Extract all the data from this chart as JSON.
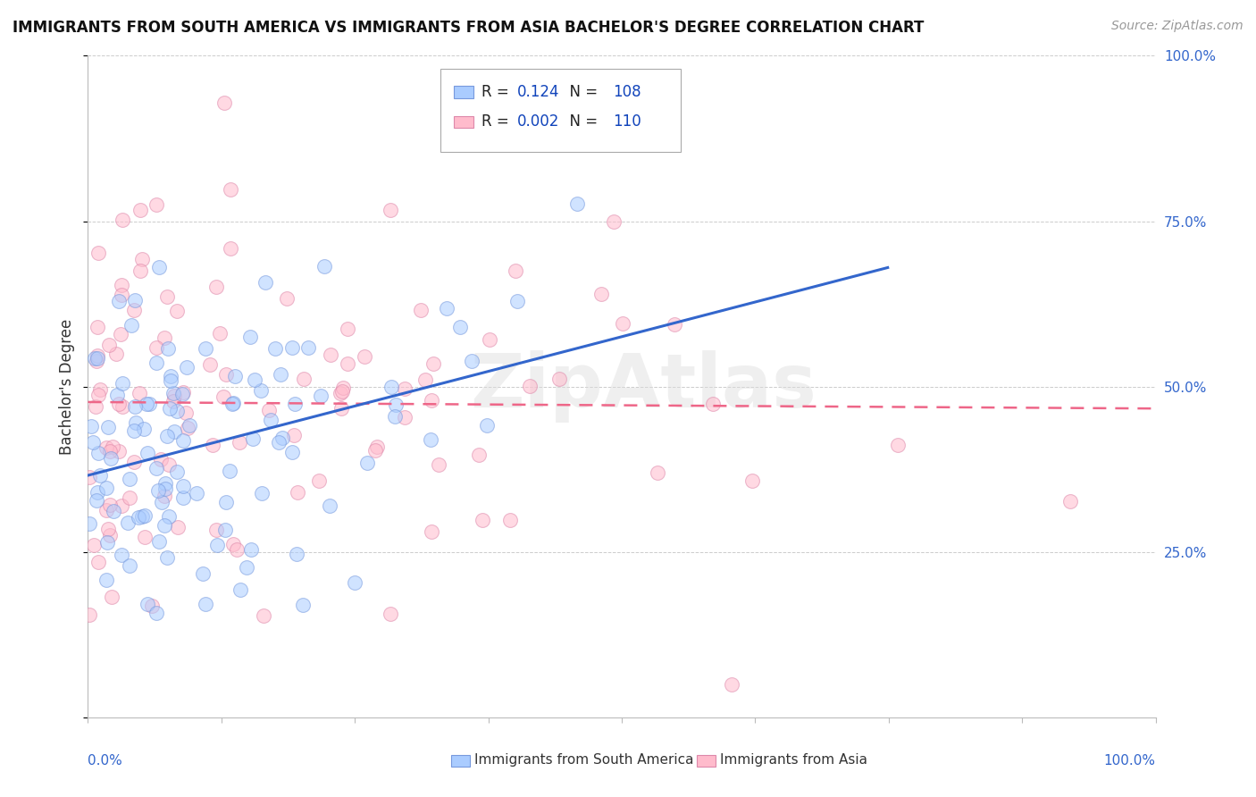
{
  "title": "IMMIGRANTS FROM SOUTH AMERICA VS IMMIGRANTS FROM ASIA BACHELOR'S DEGREE CORRELATION CHART",
  "source": "Source: ZipAtlas.com",
  "ylabel": "Bachelor's Degree",
  "watermark": "ZipAtlas",
  "series1_label": "Immigrants from South America",
  "series2_label": "Immigrants from Asia",
  "series1_R": "0.124",
  "series1_N": "108",
  "series2_R": "0.002",
  "series2_N": "110",
  "blue_face_color": "#aaccff",
  "blue_edge_color": "#7799dd",
  "pink_face_color": "#ffbbcc",
  "pink_edge_color": "#dd88aa",
  "trend1_color": "#3366cc",
  "trend2_color": "#ee6688",
  "legend_text_color": "#1144bb",
  "right_tick_color": "#3366cc",
  "bottom_tick_color": "#3366cc",
  "grid_color": "#cccccc",
  "spine_color": "#bbbbbb"
}
